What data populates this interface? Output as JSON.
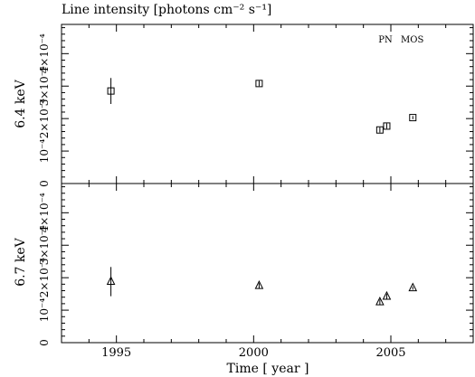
{
  "chart_data": {
    "type": "scatter",
    "title": "Line intensity [photons cm⁻² s⁻¹]",
    "xlabel": "Time [ year ]",
    "xlim": [
      1993.0,
      2008.0
    ],
    "x_ticks": [
      1995,
      2000,
      2005
    ],
    "legend": {
      "entries": [
        "PN",
        "MOS"
      ],
      "placement": "top-right"
    },
    "grid": false,
    "panels": [
      {
        "name": "6.4 keV",
        "ylabel": "6.4 keV",
        "ylim": [
          0,
          0.00049
        ],
        "y_ticks": [
          0,
          0.0001,
          0.0002,
          0.0003,
          0.0004
        ],
        "y_tick_labels": [
          "0",
          "10⁻⁴",
          "2×10⁻⁴",
          "3×10⁻⁴",
          "4×10⁻⁴"
        ],
        "marker": "square",
        "points": [
          {
            "x": 1994.8,
            "y": 0.000285,
            "yerr": 4e-05
          },
          {
            "x": 2000.2,
            "y": 0.000308,
            "yerr": 8e-06
          },
          {
            "x": 2004.6,
            "y": 0.000165,
            "yerr": 8e-06
          },
          {
            "x": 2004.85,
            "y": 0.000177,
            "yerr": 8e-06
          },
          {
            "x": 2005.8,
            "y": 0.000203,
            "yerr": 5e-06
          }
        ]
      },
      {
        "name": "6.7 keV",
        "ylabel": "6.7 keV",
        "ylim": [
          0,
          0.00049
        ],
        "y_ticks": [
          0,
          0.0001,
          0.0002,
          0.0003,
          0.0004
        ],
        "y_tick_labels": [
          "0",
          "10⁻⁴",
          "2×10⁻⁴",
          "3×10⁻⁴",
          "4×10⁻⁴"
        ],
        "marker": "triangle",
        "points": [
          {
            "x": 1994.8,
            "y": 0.000188,
            "yerr": 4.5e-05
          },
          {
            "x": 2000.2,
            "y": 0.000175,
            "yerr": 8e-06
          },
          {
            "x": 2004.6,
            "y": 0.000125,
            "yerr": 8e-06
          },
          {
            "x": 2004.85,
            "y": 0.000142,
            "yerr": 8e-06
          },
          {
            "x": 2005.8,
            "y": 0.000168,
            "yerr": 5e-06
          }
        ]
      }
    ]
  }
}
